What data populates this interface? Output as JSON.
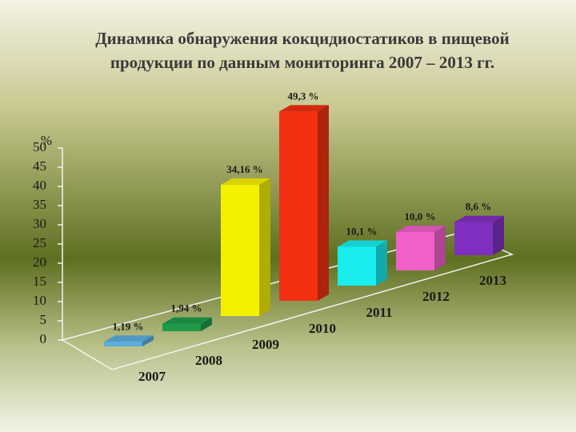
{
  "chart_data": {
    "type": "bar3d",
    "title": [
      "Динамика обнаружения кокцидиостатиков в пищевой",
      "продукции по данным мониторинга 2007 – 2013 гг."
    ],
    "ylabel": "%",
    "categories": [
      "2007",
      "2008",
      "2009",
      "2010",
      "2011",
      "2012",
      "2013"
    ],
    "values": [
      1.19,
      1.94,
      34.16,
      49.3,
      10.1,
      10.0,
      8.6
    ],
    "value_labels": [
      "1,19 %",
      "1,94 %",
      "34,16 %",
      "49,3 %",
      "10,1 %",
      "10,0 %",
      "8,6 %"
    ],
    "colors": [
      "#5aaedf",
      "#1f9a4a",
      "#f5f000",
      "#f03010",
      "#18eeee",
      "#f060c8",
      "#8030c0"
    ],
    "ylim": [
      0,
      50
    ],
    "yticks": [
      0,
      5,
      10,
      15,
      20,
      25,
      30,
      35,
      40,
      45,
      50
    ]
  }
}
